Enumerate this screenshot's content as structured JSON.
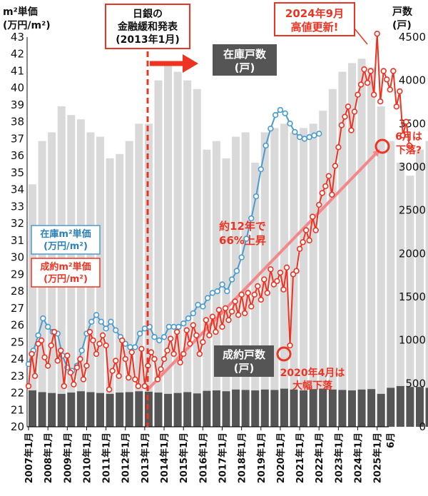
{
  "chart_data": {
    "type": "combo",
    "left_axis": {
      "title_line1": "m²単価",
      "title_line2": "(万円/m²)",
      "min": 20,
      "max": 43
    },
    "right_axis": {
      "title_line1": "戸数",
      "title_line2": "(戸)",
      "min": 0,
      "max": 4500
    },
    "x_ticks": [
      "2007年1月",
      "2008年1月",
      "2009年1月",
      "2010年1月",
      "2011年1月",
      "2012年1月",
      "2013年1月",
      "2014年1月",
      "2015年1月",
      "2016年1月",
      "2017年1月",
      "2018年1月",
      "2019年1月",
      "2020年1月",
      "2021年1月",
      "2022年1月",
      "2023年1月",
      "2024年1月",
      "2025年1月"
    ],
    "x_last_label": "6月",
    "series": [
      {
        "name": "在庫m²単価(万円/m²)",
        "axis": "left",
        "style": "line-markers",
        "color": "#4a9cd0",
        "start": "2007-01",
        "step": 3,
        "values": [
          23.7,
          24.5,
          25.4,
          26.4,
          25.9,
          25.6,
          25.5,
          24.2,
          23.5,
          23.3,
          23.6,
          24.5,
          25.5,
          26.2,
          26.6,
          26.2,
          25.8,
          26.2,
          25.7,
          25.3,
          24.9,
          24.7,
          24.7,
          25.5,
          25.8,
          25.9,
          25.3,
          25.1,
          25.3,
          25.9,
          25.9,
          25.9,
          26.1,
          26.4,
          26.7,
          27.2,
          27.1,
          27.6,
          27.9,
          28.0,
          28.4,
          28.0,
          28.7,
          29.2,
          30.0,
          31.1,
          32.3,
          33.6,
          35.2,
          36.6,
          37.6,
          38.4,
          38.7,
          38.5,
          37.9,
          37.4,
          37.1,
          37.0,
          37.1,
          37.2,
          37.3
        ]
      },
      {
        "name": "成約m²単価(万円/m²)",
        "axis": "left",
        "style": "line-markers",
        "color": "#ee3322",
        "start": "2007-01",
        "step": 2,
        "values": [
          22.4,
          24.3,
          23.0,
          24.9,
          25.1,
          24.1,
          23.6,
          24.8,
          25.6,
          23.9,
          24.5,
          22.4,
          24.2,
          23.2,
          22.5,
          23.5,
          24.0,
          22.8,
          23.6,
          25.6,
          25.1,
          24.3,
          24.9,
          25.4,
          24.8,
          22.2,
          23.3,
          23.9,
          23.0,
          25.1,
          24.0,
          22.9,
          24.4,
          22.8,
          22.4,
          24.6,
          22.4,
          23.6,
          24.4,
          24.0,
          22.8,
          23.4,
          24.0,
          24.5,
          25.2,
          24.3,
          25.6,
          23.8,
          24.3,
          25.7,
          24.9,
          26.0,
          25.4,
          24.3,
          25.0,
          26.3,
          25.4,
          26.5,
          25.6,
          26.9,
          25.9,
          27.0,
          26.3,
          26.8,
          27.4,
          26.6,
          27.8,
          26.7,
          27.9,
          27.1,
          27.8,
          28.3,
          27.5,
          28.7,
          27.9,
          29.3,
          28.4,
          28.6,
          29.1,
          28.1,
          29.4,
          24.8,
          29.0,
          29.2,
          30.5,
          30.9,
          31.6,
          31.0,
          32.4,
          31.6,
          33.1,
          33.8,
          34.2,
          34.8,
          33.7,
          35.4,
          36.5,
          37.8,
          38.3,
          38.9,
          37.5,
          38.6,
          39.6,
          40.2,
          41.1,
          40.3,
          41.0,
          39.6,
          43.2,
          39.2,
          41.0,
          40.5,
          39.9,
          41.0,
          38.9,
          39.8,
          37.2,
          38.0,
          36.6
        ]
      },
      {
        "name": "在庫戸数(戸)",
        "axis": "right",
        "style": "bars",
        "color": "#d9d9d9",
        "start": "2007-01",
        "step": 6,
        "values": [
          2800,
          3300,
          3400,
          3700,
          3600,
          3550,
          3400,
          3350,
          3100,
          3150,
          3300,
          3500,
          3500,
          4000,
          4200,
          4100,
          4000,
          3900,
          3200,
          3300,
          3100,
          3350,
          3400,
          3050,
          3400,
          3450,
          3500,
          3400,
          3450,
          3500,
          3650,
          3900,
          4100,
          4200,
          4250,
          4150,
          3700,
          3300,
          3050,
          2900,
          3200,
          3300,
          3700,
          3900,
          4200,
          4400,
          4500
        ]
      },
      {
        "name": "成約戸数(戸)",
        "axis": "right",
        "style": "bars",
        "color": "#555555",
        "start": "2007-01",
        "step": 6,
        "values": [
          420,
          400,
          390,
          380,
          395,
          410,
          400,
          390,
          380,
          395,
          400,
          410,
          405,
          395,
          380,
          390,
          400,
          385,
          415,
          420,
          410,
          430,
          425,
          420,
          430,
          425,
          440,
          430,
          420,
          435,
          440,
          430,
          425,
          420,
          430,
          435,
          380,
          450,
          470,
          460,
          460,
          450,
          440,
          430,
          440,
          450,
          460
        ]
      }
    ],
    "annotations": {
      "boj": {
        "line1": "日銀の",
        "line2": "金融緩和発表",
        "line3": "(2013年1月)"
      },
      "record": {
        "line1": "2024年9月",
        "line2": "高値更新!"
      },
      "june": {
        "line1": "6月は",
        "line2": "下落?"
      },
      "rise": {
        "line1": "約12年で",
        "line2": "66%上昇"
      },
      "covid": {
        "line1": "2020年4月は",
        "line2": "大幅下落"
      },
      "stock_label": {
        "line1": "在庫戸数",
        "line2": "(戸)"
      },
      "sold_label": {
        "line1": "成約戸数",
        "line2": "(戸)"
      },
      "legend_stock_price": {
        "line1": "在庫m²単価",
        "line2": "(万円/m²)"
      },
      "legend_sold_price": {
        "line1": "成約m²単価",
        "line2": "(万円/m²)"
      }
    },
    "colors": {
      "red": "#ee3322",
      "blue": "#4a9cd0",
      "dark_box": "#555555"
    }
  }
}
